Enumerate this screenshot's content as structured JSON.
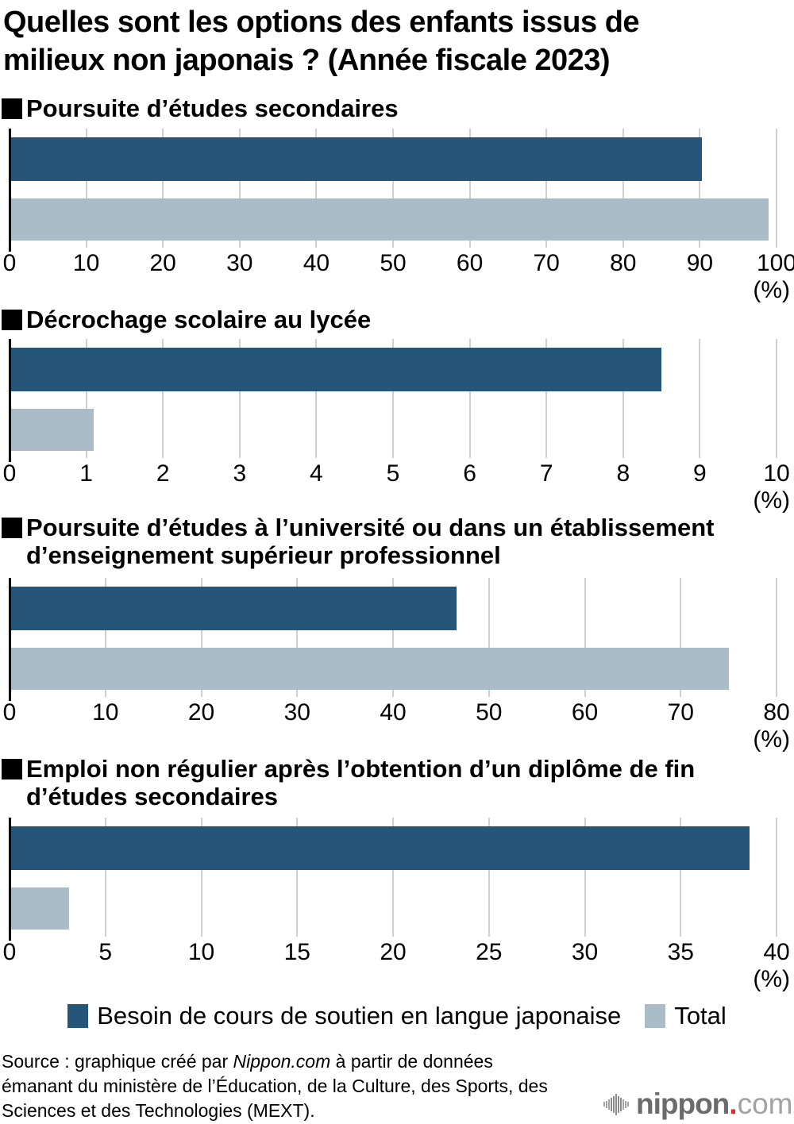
{
  "title": "Quelles sont les options des enfants issus de milieux non japonais ? (Année fiscale 2023)",
  "title_lines": [
    "Quelles sont les options des enfants issus de",
    "milieux non japonais ? (Année fiscale 2023)"
  ],
  "colors": {
    "dark_series": "#25567a",
    "light_series": "#a9bcc8",
    "gridline": "#cfcfcf",
    "axis": "#000000",
    "logo_gray": "#6b6b6b",
    "logo_light_gray": "#a2a2a2",
    "logo_red": "#e8281e"
  },
  "icons": {
    "heading_marker": "■ black filled square",
    "legend_swatch": "filled color square",
    "logo_wave": "sound-wave vertical bars"
  },
  "legend": {
    "besoin_label": "Besoin de cours de soutien en langue japonaise",
    "total_label": "Total"
  },
  "chart_data": [
    {
      "type": "bar",
      "orientation": "horizontal",
      "title": "Poursuite d’études secondaires",
      "title_lines": [
        "Poursuite d’études secondaires"
      ],
      "series": [
        {
          "name": "Besoin de cours de soutien en langue japonaise",
          "value": 90.3
        },
        {
          "name": "Total",
          "value": 99.0
        }
      ],
      "xlim": [
        0,
        100
      ],
      "ticks": [
        0,
        10,
        20,
        30,
        40,
        50,
        60,
        70,
        80,
        90,
        100
      ],
      "unit": "(%)",
      "grid": true
    },
    {
      "type": "bar",
      "orientation": "horizontal",
      "title": "Décrochage scolaire au lycée",
      "title_lines": [
        "Décrochage scolaire au lycée"
      ],
      "series": [
        {
          "name": "Besoin de cours de soutien en langue japonaise",
          "value": 8.5
        },
        {
          "name": "Total",
          "value": 1.1
        }
      ],
      "xlim": [
        0,
        10
      ],
      "ticks": [
        0,
        1,
        2,
        3,
        4,
        5,
        6,
        7,
        8,
        9,
        10
      ],
      "unit": "(%)",
      "grid": true
    },
    {
      "type": "bar",
      "orientation": "horizontal",
      "title": "Poursuite d’études à l’université ou dans un établissement d’enseignement supérieur professionnel",
      "title_lines": [
        "Poursuite d’études à l’université ou dans un établissement",
        "d’enseignement supérieur professionnel"
      ],
      "series": [
        {
          "name": "Besoin de cours de soutien en langue japonaise",
          "value": 46.6
        },
        {
          "name": "Total",
          "value": 75.0
        }
      ],
      "xlim": [
        0,
        80
      ],
      "ticks": [
        0,
        10,
        20,
        30,
        40,
        50,
        60,
        70,
        80
      ],
      "unit": "(%)",
      "grid": true
    },
    {
      "type": "bar",
      "orientation": "horizontal",
      "title": "Emploi non régulier après l’obtention d’un diplôme de fin d’études secondaires",
      "title_lines": [
        "Emploi non régulier après l’obtention d’un diplôme de fin",
        "d’études secondaires"
      ],
      "series": [
        {
          "name": "Besoin de cours de soutien en langue japonaise",
          "value": 38.6
        },
        {
          "name": "Total",
          "value": 3.1
        }
      ],
      "xlim": [
        0,
        40
      ],
      "ticks": [
        0,
        5,
        10,
        15,
        20,
        25,
        30,
        35,
        40
      ],
      "unit": "(%)",
      "grid": true
    }
  ],
  "source": {
    "line1_pre": "Source : graphique créé par ",
    "line1_italic": "Nippon.com",
    "line1_post": " à partir de données",
    "line2": "émanant du ministère de l’Éducation, de la Culture, des Sports, des",
    "line3": "Sciences et des Technologies (MEXT)."
  },
  "logo": {
    "icon": "sound-wave-icon",
    "name": "nippon",
    "dot": ".",
    "tld": "com"
  }
}
